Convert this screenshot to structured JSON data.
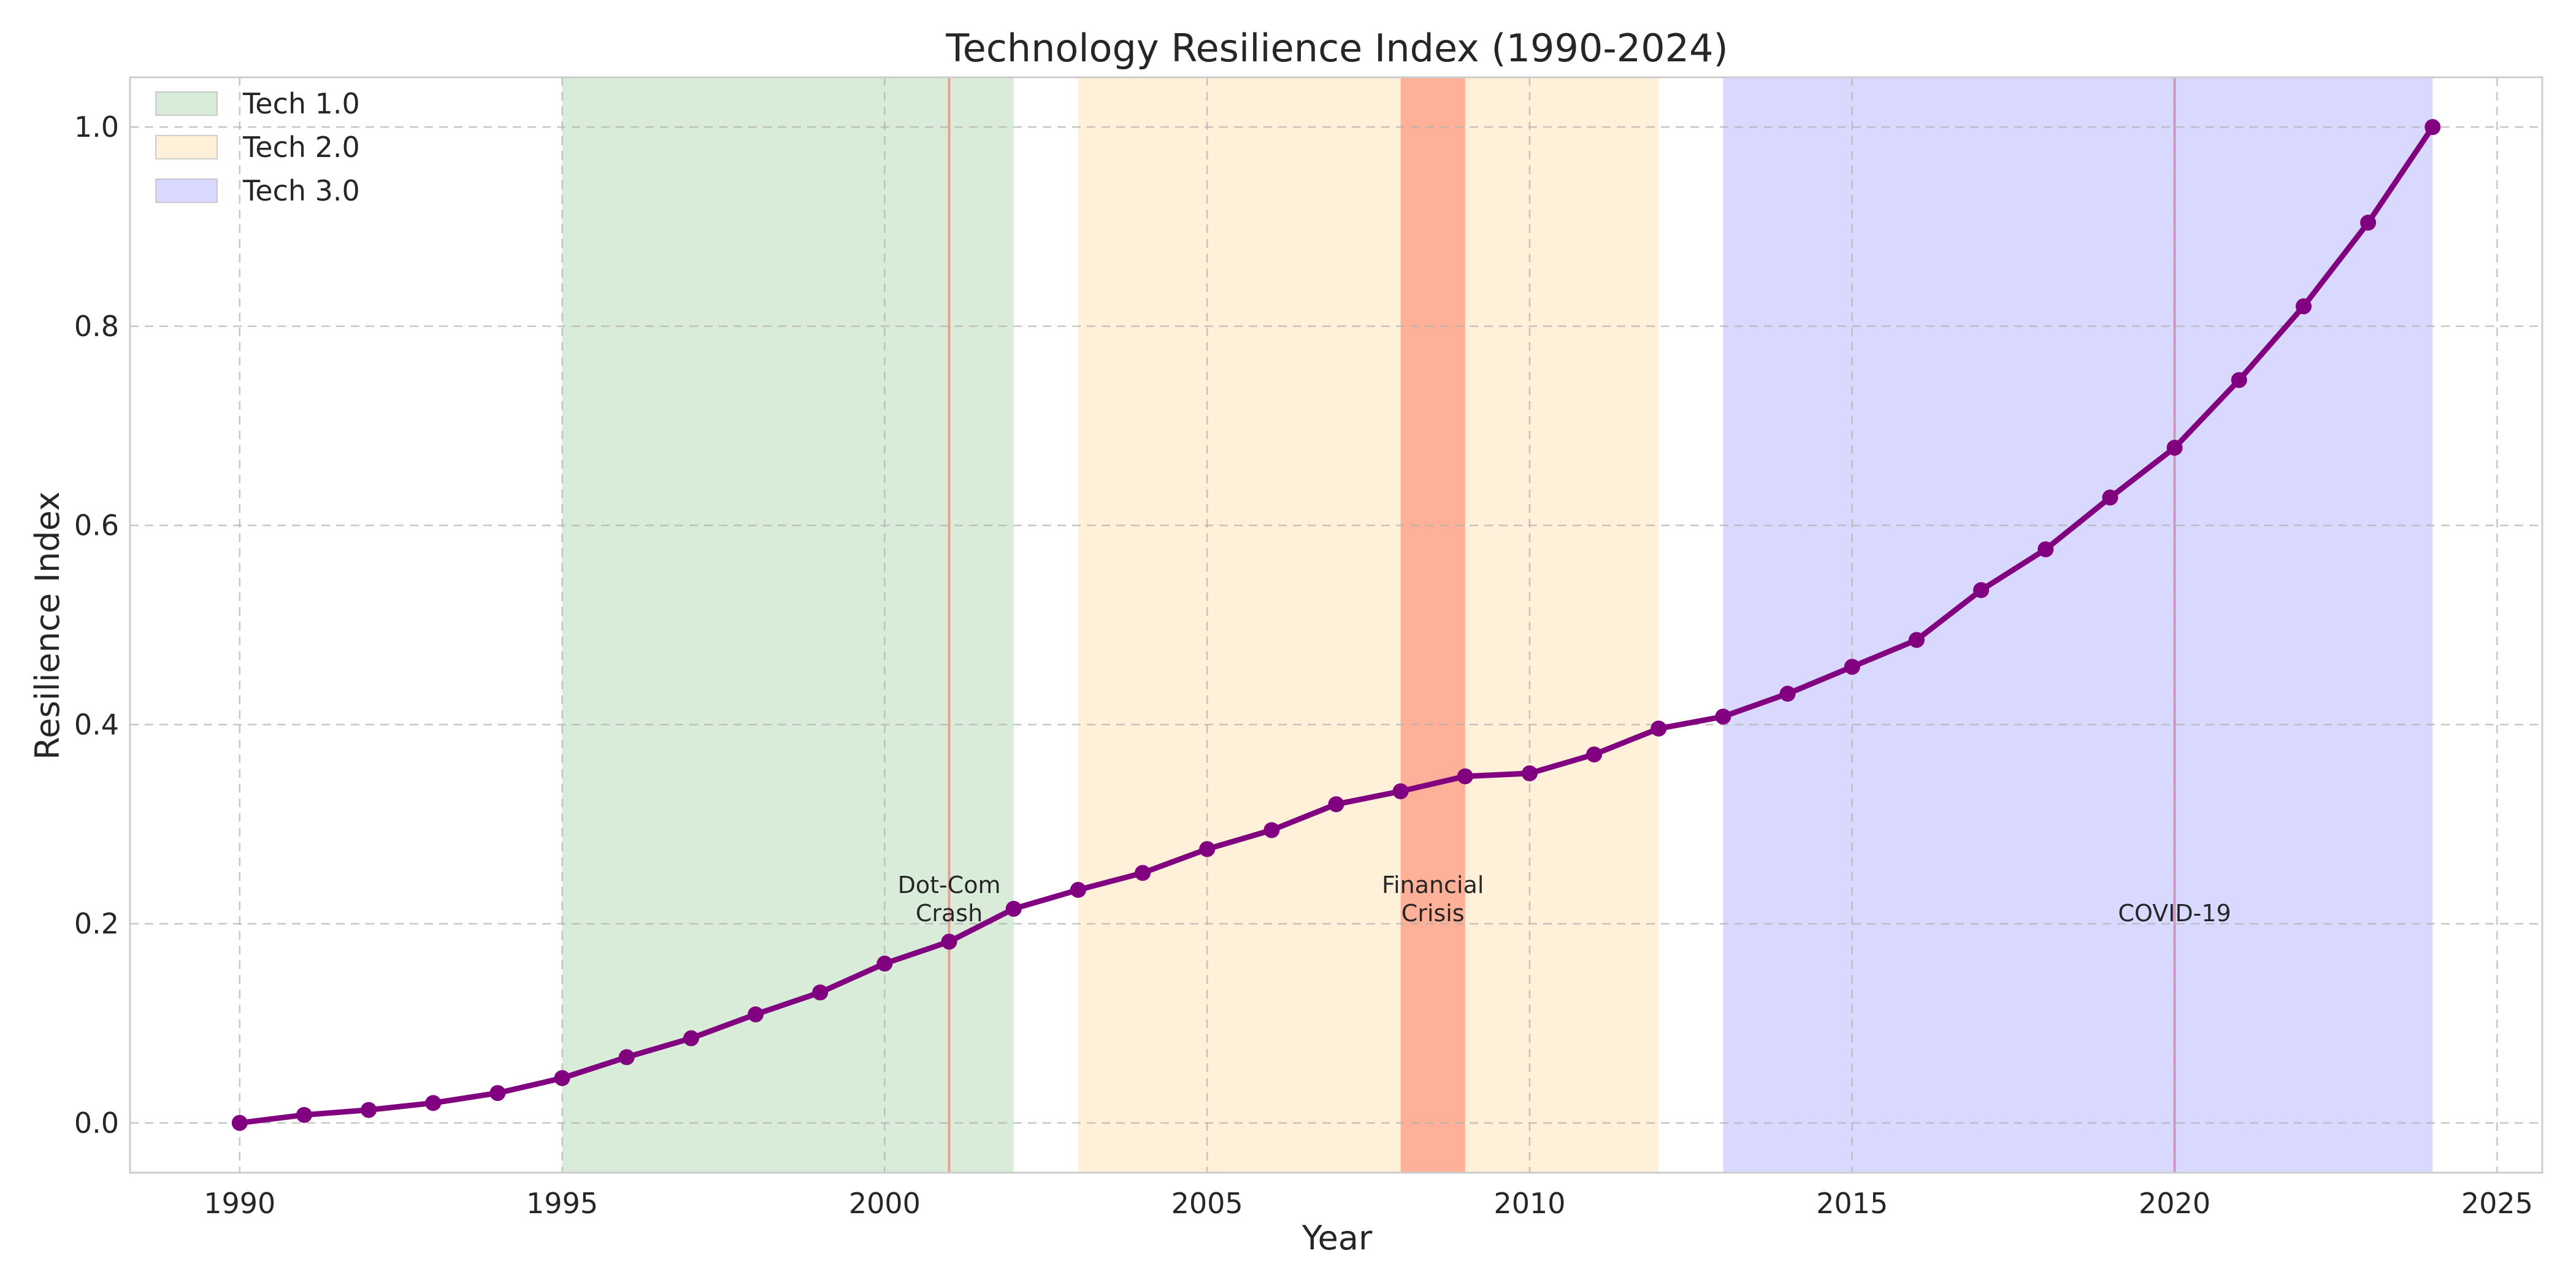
{
  "chart_data": {
    "type": "line",
    "title": "Technology Resilience Index (1990-2024)",
    "xlabel": "Year",
    "ylabel": "Resilience Index",
    "xlim": [
      1988.3,
      2025.7
    ],
    "ylim": [
      -0.05,
      1.05
    ],
    "xticks": [
      1990,
      1995,
      2000,
      2005,
      2010,
      2015,
      2020,
      2025
    ],
    "yticks": [
      0.0,
      0.2,
      0.4,
      0.6,
      0.8,
      1.0
    ],
    "grid": true,
    "legend_position": "top-left",
    "line_color": "#800080",
    "series": [
      {
        "x": [
          1990,
          1991,
          1992,
          1993,
          1994,
          1995,
          1996,
          1997,
          1998,
          1999,
          2000,
          2001,
          2002,
          2003,
          2004,
          2005,
          2006,
          2007,
          2008,
          2009,
          2010,
          2011,
          2012,
          2013,
          2014,
          2015,
          2016,
          2017,
          2018,
          2019,
          2020,
          2021,
          2022,
          2023,
          2024
        ],
        "values": [
          0.0,
          0.008,
          0.013,
          0.02,
          0.03,
          0.045,
          0.066,
          0.085,
          0.109,
          0.131,
          0.16,
          0.182,
          0.215,
          0.234,
          0.251,
          0.275,
          0.294,
          0.32,
          0.333,
          0.348,
          0.351,
          0.37,
          0.396,
          0.408,
          0.431,
          0.458,
          0.485,
          0.535,
          0.576,
          0.628,
          0.678,
          0.746,
          0.82,
          0.904,
          1.0
        ]
      }
    ],
    "eras": [
      {
        "name": "Tech 1.0",
        "start": 1995,
        "end": 2002,
        "color": "#d9ecd9"
      },
      {
        "name": "Tech 2.0",
        "start": 2003,
        "end": 2012,
        "color": "#fff0d9"
      },
      {
        "name": "Tech 3.0",
        "start": 2013,
        "end": 2024,
        "color": "#d9d9ff"
      }
    ],
    "events": [
      {
        "label_lines": [
          "Dot-Com",
          "Crash"
        ],
        "start": 2001,
        "end": 2001,
        "color": "#e8a090"
      },
      {
        "label_lines": [
          "Financial",
          "Crisis"
        ],
        "start": 2008,
        "end": 2009,
        "color": "#ffb098"
      },
      {
        "label_lines": [
          "COVID-19"
        ],
        "start": 2020,
        "end": 2020,
        "color": "#d98cc0"
      }
    ]
  }
}
